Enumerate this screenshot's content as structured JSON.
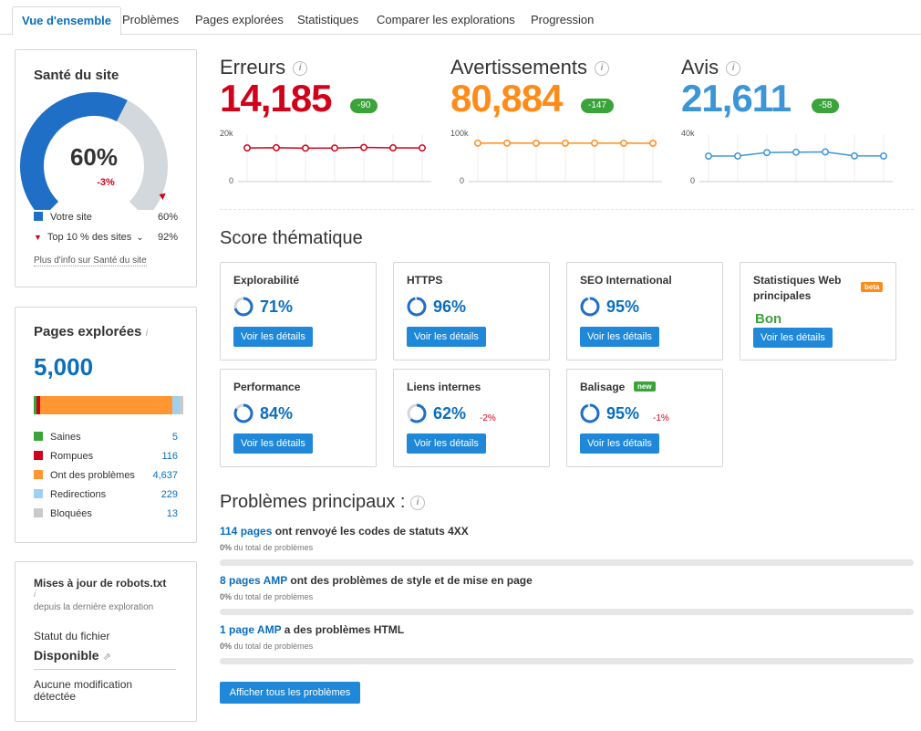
{
  "tabs": [
    "Vue d'ensemble",
    "Problèmes",
    "Pages explorées",
    "Statistiques",
    "Comparer les explorations",
    "Progression"
  ],
  "site_health": {
    "title": "Santé du site",
    "percent": "60%",
    "percent_value": 60,
    "delta": "-3%",
    "your_site_label": "Votre site",
    "your_site_value": "60%",
    "top_label": "Top 10 % des sites",
    "top_value": "92%",
    "top_marker_value": 92,
    "more_info": "Plus d'info sur Santé du site",
    "colors": {
      "site": "#1f6fc7",
      "track": "#d3d8dc",
      "marker": "#d0021b"
    }
  },
  "crawled": {
    "title": "Pages explorées",
    "total": "5,000",
    "items": [
      {
        "label": "Saines",
        "value": "5",
        "count": 5,
        "color": "#3aa33a"
      },
      {
        "label": "Rompues",
        "value": "116",
        "count": 116,
        "color": "#d0021b"
      },
      {
        "label": "Ont des problèmes",
        "value": "4,637",
        "count": 4637,
        "color": "#ff9632"
      },
      {
        "label": "Redirections",
        "value": "229",
        "count": 229,
        "color": "#9fd0f0"
      },
      {
        "label": "Bloquées",
        "value": "13",
        "count": 13,
        "color": "#c9c9c9"
      }
    ]
  },
  "robots": {
    "title": "Mises à jour de robots.txt",
    "since": "depuis la dernière exploration",
    "status_label": "Statut du fichier",
    "status_value": "Disponible",
    "change": "Aucune modification détectée"
  },
  "metrics": [
    {
      "label": "Erreurs",
      "value": "14,185",
      "delta": "-90",
      "color": "#d0021b",
      "ymax_label": "20k",
      "ymin_label": "0",
      "ymax": 20000,
      "series": [
        14200,
        14300,
        14100,
        14150,
        14400,
        14250,
        14185
      ]
    },
    {
      "label": "Avertissements",
      "value": "80,884",
      "delta": "-147",
      "color": "#ff8c1a",
      "ymax_label": "100k",
      "ymin_label": "0",
      "ymax": 100000,
      "series": [
        81000,
        81200,
        80900,
        80950,
        81000,
        80950,
        80884
      ]
    },
    {
      "label": "Avis",
      "value": "21,611",
      "delta": "-58",
      "color": "#3b95d6",
      "ymax_label": "40k",
      "ymin_label": "0",
      "ymax": 40000,
      "series": [
        21500,
        21600,
        24500,
        24800,
        25000,
        21700,
        21611
      ]
    }
  ],
  "thematic": {
    "title": "Score thématique",
    "button": "Voir les détails",
    "cards": [
      {
        "title": "Explorabilité",
        "pct": "71%",
        "value": 71,
        "delta": ""
      },
      {
        "title": "HTTPS",
        "pct": "96%",
        "value": 96,
        "delta": ""
      },
      {
        "title": "SEO International",
        "pct": "95%",
        "value": 95,
        "delta": ""
      },
      {
        "title": "Statistiques Web principales",
        "badge": "beta",
        "status": "Bon"
      },
      {
        "title": "Performance",
        "pct": "84%",
        "value": 84,
        "delta": ""
      },
      {
        "title": "Liens internes",
        "pct": "62%",
        "value": 62,
        "delta": "-2%"
      },
      {
        "title": "Balisage",
        "badge": "new",
        "pct": "95%",
        "value": 95,
        "delta": "-1%"
      }
    ]
  },
  "top_issues": {
    "title": "Problèmes principaux :",
    "items": [
      {
        "link": "114 pages",
        "text": " ont renvoyé les codes de statuts 4XX",
        "pct": "0%",
        "sub": " du total de problèmes"
      },
      {
        "link": "8 pages AMP",
        "text": " ont des problèmes de style et de mise en page",
        "pct": "0%",
        "sub": " du total de problèmes"
      },
      {
        "link": "1 page AMP",
        "text": " a des problèmes HTML",
        "pct": "0%",
        "sub": " du total de problèmes"
      }
    ],
    "button": "Afficher tous les problèmes"
  }
}
